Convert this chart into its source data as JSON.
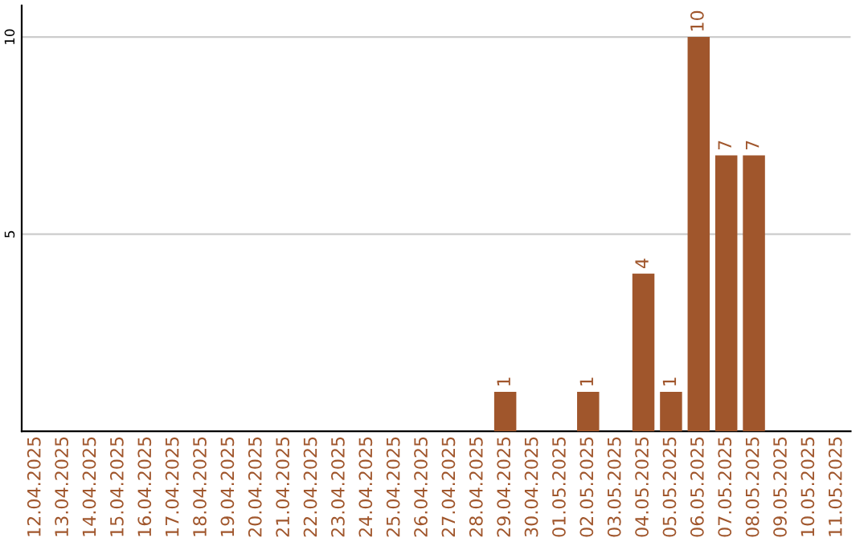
{
  "chart_data": {
    "type": "bar",
    "categories": [
      "12.04.2025",
      "13.04.2025",
      "14.04.2025",
      "15.04.2025",
      "16.04.2025",
      "17.04.2025",
      "18.04.2025",
      "19.04.2025",
      "20.04.2025",
      "21.04.2025",
      "22.04.2025",
      "23.04.2025",
      "24.04.2025",
      "25.04.2025",
      "26.04.2025",
      "27.04.2025",
      "28.04.2025",
      "29.04.2025",
      "30.04.2025",
      "01.05.2025",
      "02.05.2025",
      "03.05.2025",
      "04.05.2025",
      "05.05.2025",
      "06.05.2025",
      "07.05.2025",
      "08.05.2025",
      "09.05.2025",
      "10.05.2025",
      "11.05.2025"
    ],
    "values": [
      0,
      0,
      0,
      0,
      0,
      0,
      0,
      0,
      0,
      0,
      0,
      0,
      0,
      0,
      0,
      0,
      0,
      1,
      0,
      0,
      1,
      0,
      4,
      1,
      10,
      7,
      7,
      0,
      0,
      0
    ],
    "value_labels": [
      null,
      null,
      null,
      null,
      null,
      null,
      null,
      null,
      null,
      null,
      null,
      null,
      null,
      null,
      null,
      null,
      null,
      "1",
      null,
      null,
      "1",
      null,
      "4",
      "1",
      "10",
      "7",
      "7",
      null,
      null,
      null
    ],
    "color": "#a0562c",
    "ylim": [
      0,
      10.8
    ],
    "yticks": [
      5,
      10
    ],
    "grid": "y",
    "legend": false
  }
}
